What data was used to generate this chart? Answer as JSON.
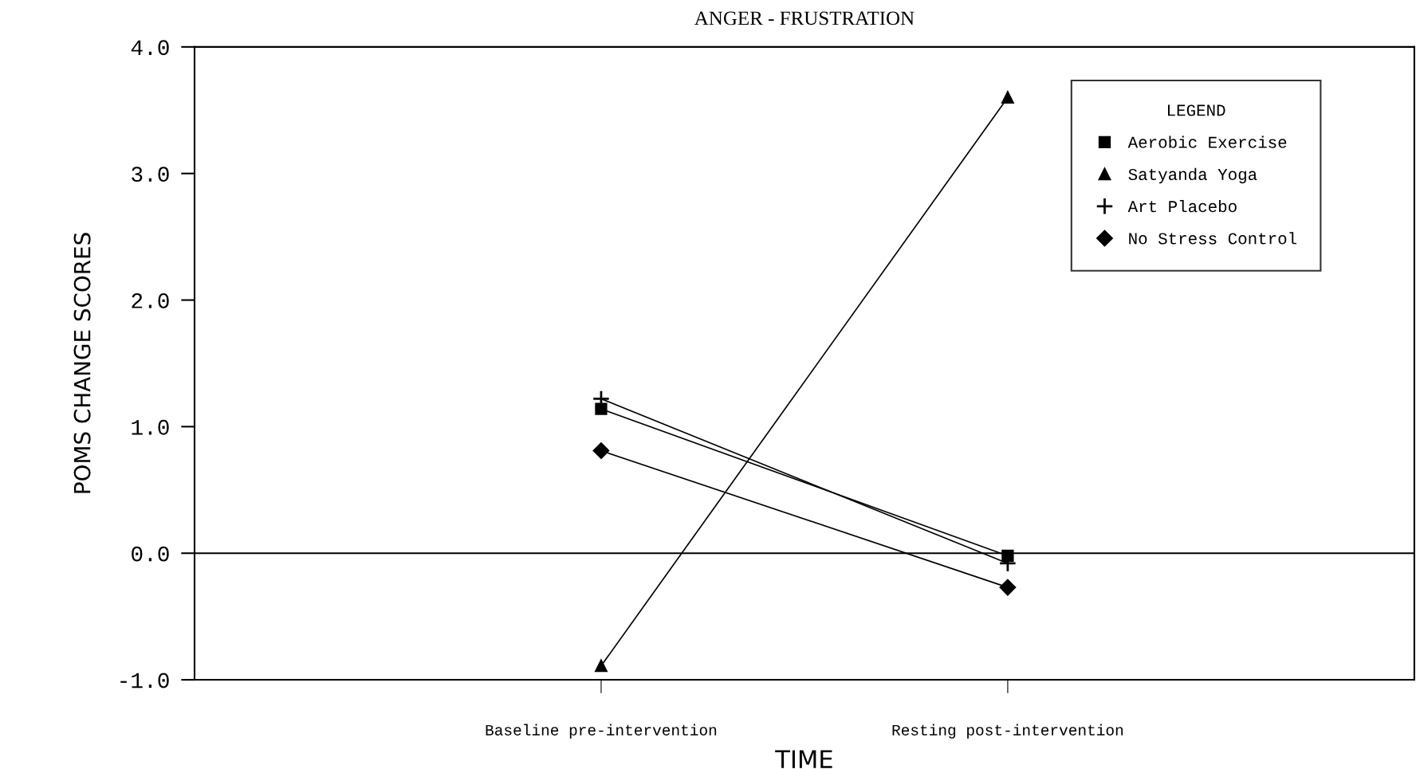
{
  "chart_data": {
    "type": "line",
    "title": "ANGER - FRUSTRATION",
    "xlabel": "TIME",
    "ylabel": "POMS CHANGE SCORES",
    "categories": [
      "Baseline pre-intervention",
      "Resting post-intervention"
    ],
    "series": [
      {
        "name": "Aerobic Exercise",
        "color": "#000000",
        "marker": "square",
        "values": [
          1.14,
          -0.02
        ]
      },
      {
        "name": "Satyanda Yoga",
        "color": "#000000",
        "marker": "triangle",
        "values": [
          -0.89,
          3.6
        ]
      },
      {
        "name": "Art Placebo",
        "color": "#000000",
        "marker": "cross",
        "values": [
          1.22,
          -0.08
        ]
      },
      {
        "name": "No Stress Control",
        "color": "#000000",
        "marker": "diamond",
        "values": [
          0.81,
          -0.27
        ]
      }
    ],
    "ylim": [
      -1,
      4
    ],
    "yticks": [
      {
        "value": -1,
        "label": "-1.0"
      },
      {
        "value": 0,
        "label": "0.0"
      },
      {
        "value": 1,
        "label": "1.0"
      },
      {
        "value": 2,
        "label": "2.0"
      },
      {
        "value": 3,
        "label": "3.0"
      },
      {
        "value": 4,
        "label": "4.0"
      }
    ],
    "ref_lines": [
      {
        "axis": "y",
        "value": 0,
        "color": "#000000"
      }
    ],
    "legend_title": "LEGEND",
    "legend": "top right",
    "grid": false,
    "line_style": "solid"
  }
}
